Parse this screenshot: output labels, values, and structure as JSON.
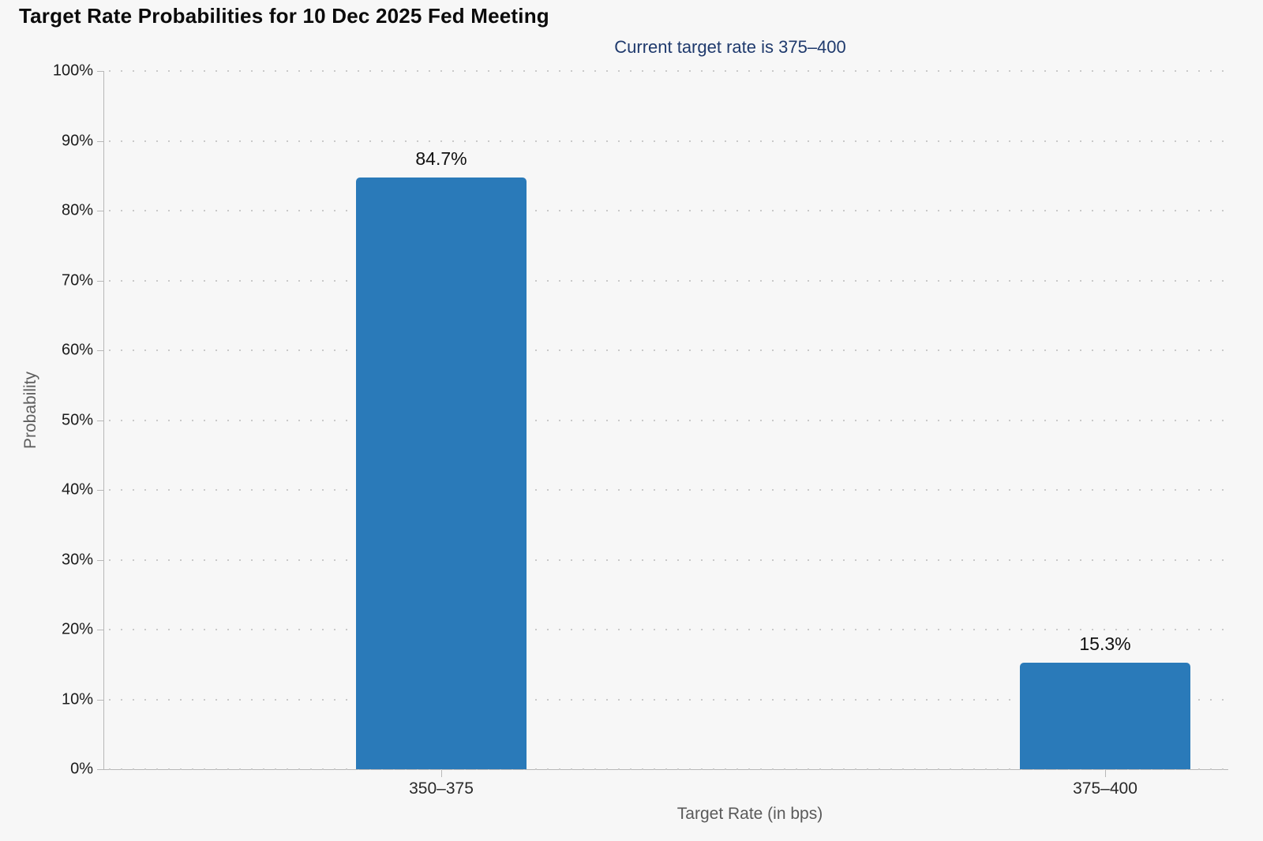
{
  "header": {
    "title": "Target Rate Probabilities for 10 Dec 2025 Fed Meeting",
    "subtitle": "Current target rate is 375–400"
  },
  "chart_data": {
    "type": "bar",
    "title": "Target Rate Probabilities for 10 Dec 2025 Fed Meeting",
    "subtitle": "Current target rate is 375–400",
    "categories": [
      "350–375",
      "375–400"
    ],
    "values": [
      84.7,
      15.3
    ],
    "value_labels": [
      "84.7%",
      "15.3%"
    ],
    "xlabel": "Target Rate (in bps)",
    "ylabel": "Probability",
    "ylim": [
      0,
      100
    ],
    "ytick_step": 10,
    "ytick_labels": [
      "0%",
      "10%",
      "20%",
      "30%",
      "40%",
      "50%",
      "60%",
      "70%",
      "80%",
      "90%",
      "100%"
    ],
    "grid": "dotted horizontal, on",
    "legend": "none"
  },
  "colors": {
    "background": "#f7f7f7",
    "bar": "#2a7ab9",
    "subtitle_text": "#1f3a6d",
    "title_text": "#0b0b0b",
    "axis_text": "#1c1c1c",
    "muted_text": "#5a5a5a",
    "gridline": "#c9c9c9",
    "axis_line": "#b8b8b8"
  }
}
